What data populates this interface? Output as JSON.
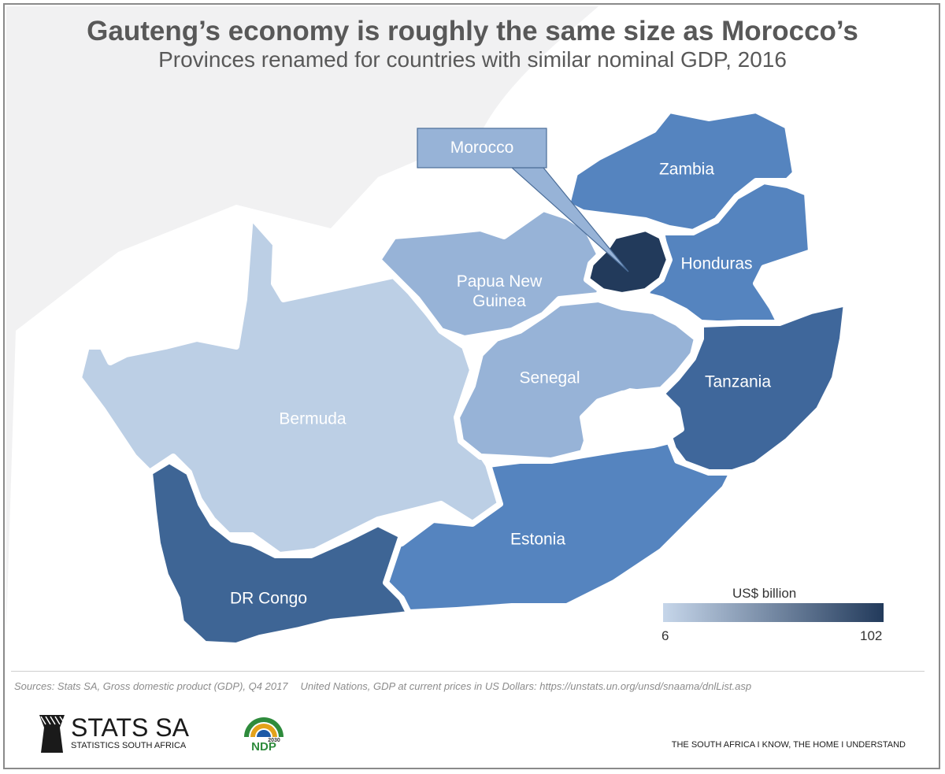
{
  "header": {
    "title": "Gauteng’s economy is roughly the same size as Morocco’s",
    "subtitle": "Provinces renamed for countries with similar nominal GDP, 2016"
  },
  "map": {
    "provinces": [
      {
        "label": "Zambia",
        "color": "#5584bf"
      },
      {
        "label": "Honduras",
        "color": "#5584bf"
      },
      {
        "label": "Papua New Guinea",
        "line1": "Papua New",
        "line2": "Guinea",
        "color": "#97b3d7"
      },
      {
        "label": "Senegal",
        "color": "#97b3d7"
      },
      {
        "label": "Tanzania",
        "color": "#3f679b"
      },
      {
        "label": "Bermuda",
        "color": "#bccfe5"
      },
      {
        "label": "DR Congo",
        "color": "#3e6595"
      },
      {
        "label": "Estonia",
        "color": "#5584bf"
      },
      {
        "label": "Morocco",
        "color": "#223a5b"
      }
    ],
    "callout": "Morocco"
  },
  "legend": {
    "title": "US$ billion",
    "min": "6",
    "max": "102",
    "color_low": "#c6d6ea",
    "color_high": "#223a5b"
  },
  "footer": {
    "source1": "Sources: Stats SA, Gross domestic product (GDP), Q4 2017",
    "source2": "United Nations, GDP at current prices in US Dollars: https://unstats.un.org/unsd/snaama/dnlList.asp",
    "org_name": "STATS SA",
    "org_full": "STATISTICS SOUTH AFRICA",
    "ndp_text": "NDP",
    "ndp_year": "2030",
    "tagline": "THE SOUTH AFRICA I KNOW, THE HOME I UNDERSTAND"
  }
}
